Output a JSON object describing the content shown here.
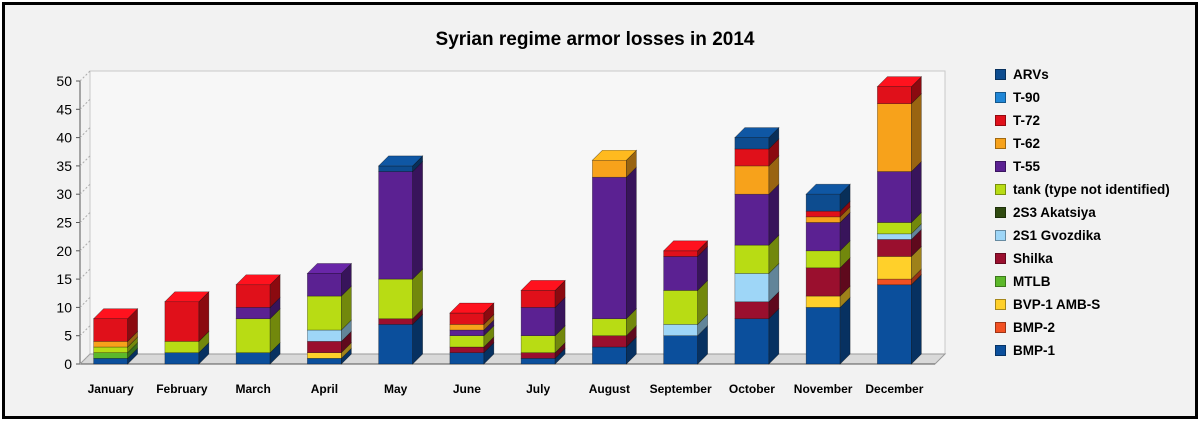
{
  "chart_data": {
    "type": "bar",
    "stacked": true,
    "title": "Syrian regime armor losses in 2014",
    "xlabel": "",
    "ylabel": "",
    "ylim": [
      0,
      50
    ],
    "yticks": [
      0,
      5,
      10,
      15,
      20,
      25,
      30,
      35,
      40,
      45,
      50
    ],
    "grid": false,
    "legend_position": "right",
    "categories": [
      "January",
      "February",
      "March",
      "April",
      "May",
      "June",
      "July",
      "August",
      "September",
      "October",
      "November",
      "December"
    ],
    "series": [
      {
        "name": "BMP-1",
        "color": "#0b4f9c",
        "values": [
          1,
          2,
          2,
          1,
          7,
          2,
          1,
          3,
          5,
          8,
          10,
          14
        ]
      },
      {
        "name": "BMP-2",
        "color": "#f25022",
        "values": [
          0,
          0,
          0,
          0,
          0,
          0,
          0,
          0,
          0,
          0,
          0,
          1
        ]
      },
      {
        "name": "BVP-1 AMB-S",
        "color": "#ffd02a",
        "values": [
          0,
          0,
          0,
          1,
          0,
          0,
          0,
          0,
          0,
          0,
          2,
          4
        ]
      },
      {
        "name": "MTLB",
        "color": "#5cb82a",
        "values": [
          1,
          0,
          0,
          0,
          0,
          0,
          0,
          0,
          0,
          0,
          0,
          0
        ]
      },
      {
        "name": "Shilka",
        "color": "#9a0f2e",
        "values": [
          0,
          0,
          0,
          2,
          1,
          1,
          1,
          2,
          0,
          3,
          5,
          3
        ]
      },
      {
        "name": "2S1 Gvozdika",
        "color": "#9ed6f7",
        "values": [
          0,
          0,
          0,
          2,
          0,
          0,
          0,
          0,
          2,
          5,
          0,
          1
        ]
      },
      {
        "name": "2S3 Akatsiya",
        "color": "#2f4a10",
        "values": [
          0,
          0,
          0,
          0,
          0,
          0,
          0,
          0,
          0,
          0,
          0,
          0
        ]
      },
      {
        "name": "tank (type not identified)",
        "color": "#b8dc14",
        "values": [
          1,
          2,
          6,
          6,
          7,
          2,
          3,
          3,
          6,
          5,
          3,
          2
        ]
      },
      {
        "name": "T-55",
        "color": "#5b2192",
        "values": [
          0,
          0,
          2,
          4,
          19,
          1,
          5,
          25,
          6,
          9,
          5,
          9
        ]
      },
      {
        "name": "T-62",
        "color": "#f7a21b",
        "values": [
          1,
          0,
          0,
          0,
          0,
          1,
          0,
          3,
          0,
          5,
          1,
          12
        ]
      },
      {
        "name": "T-72",
        "color": "#e0101a",
        "values": [
          4,
          7,
          4,
          0,
          0,
          2,
          3,
          0,
          1,
          3,
          1,
          3
        ]
      },
      {
        "name": "T-90",
        "color": "#1f86d6",
        "values": [
          0,
          0,
          0,
          0,
          0,
          0,
          0,
          0,
          0,
          0,
          0,
          0
        ]
      },
      {
        "name": "ARVs",
        "color": "#0d4c8f",
        "values": [
          0,
          0,
          0,
          0,
          1,
          0,
          0,
          0,
          0,
          2,
          3,
          0
        ]
      }
    ]
  }
}
